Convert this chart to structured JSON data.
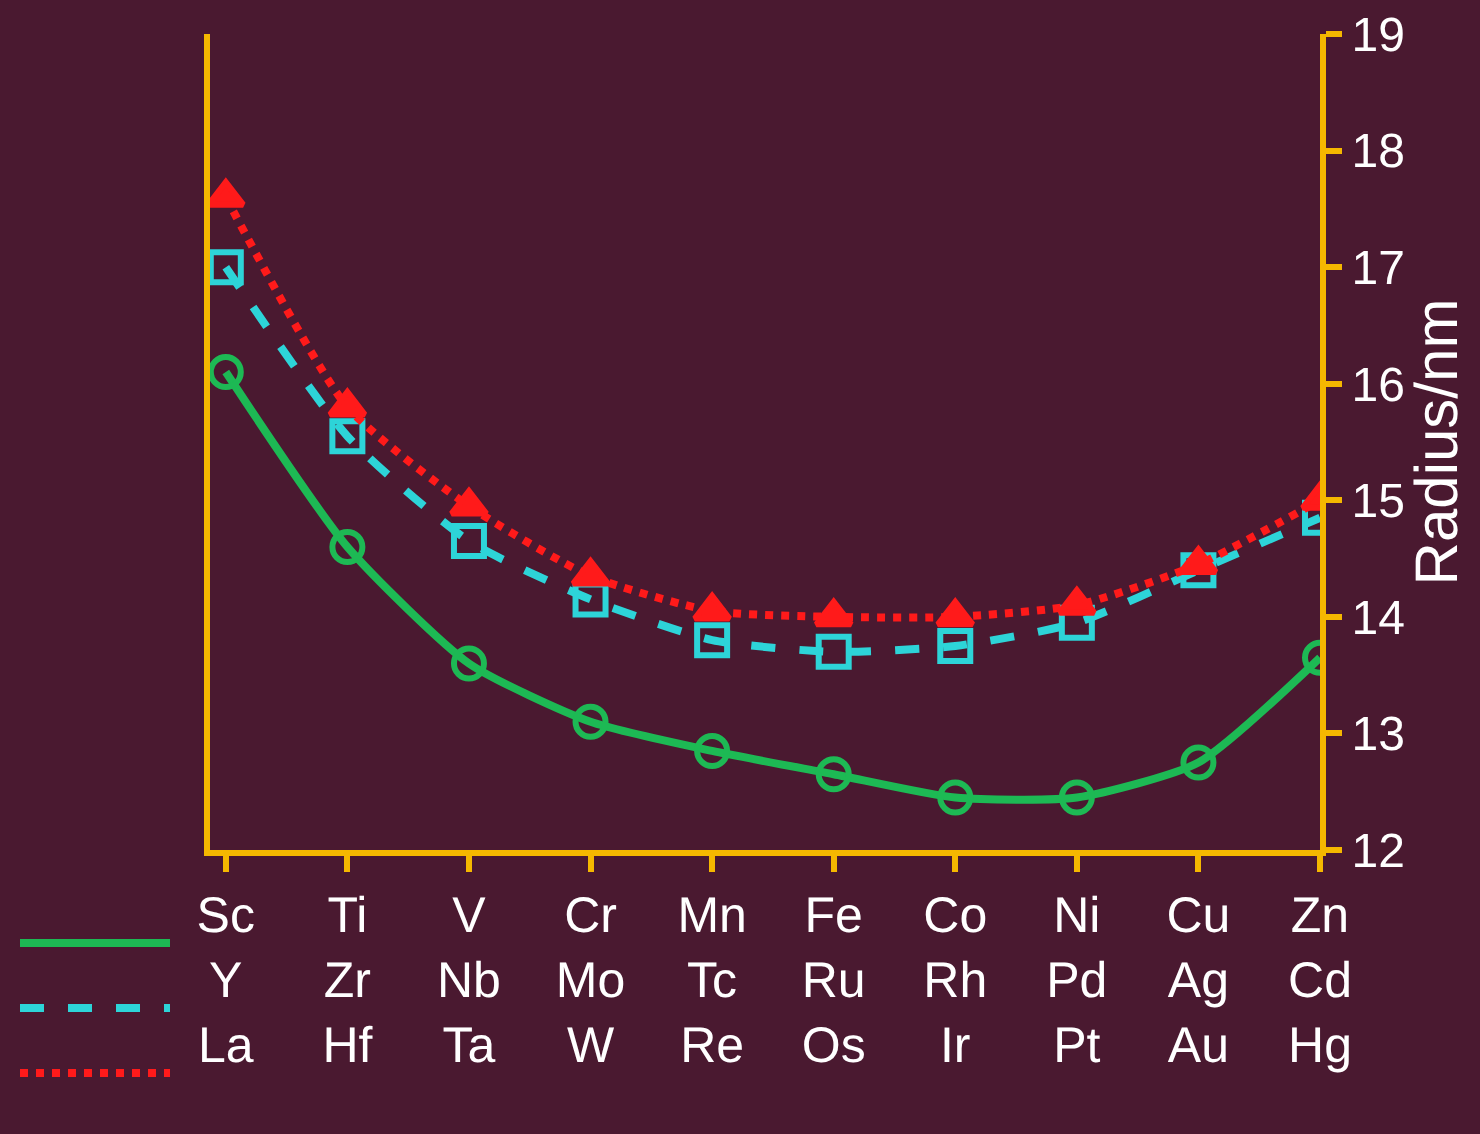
{
  "chart_data": {
    "type": "line",
    "ylabel": "Radius/nm",
    "categories": [
      "Sc\nY\nLa",
      "Ti\nZr\nHf",
      "V\nNb\nTa",
      "Cr\nMo\nW",
      "Mn\nTc\nRe",
      "Fe\nRu\nOs",
      "Co\nRh\nIr",
      "Ni\nPd\nPt",
      "Cu\nAg\nAu",
      "Zn\nCd\nHg"
    ],
    "series": [
      {
        "color": "#1db954",
        "marker": "circle",
        "line_style": "solid",
        "values": [
          16.1,
          14.6,
          13.6,
          13.1,
          12.85,
          12.65,
          12.45,
          12.45,
          12.75,
          13.65
        ]
      },
      {
        "color": "#2dd4d8",
        "marker": "square",
        "line_style": "dashed",
        "values": [
          17.0,
          15.55,
          14.65,
          14.15,
          13.8,
          13.7,
          13.75,
          13.95,
          14.4,
          14.85
        ]
      },
      {
        "color": "#ff1a1a",
        "marker": "triangle",
        "line_style": "dotted",
        "values": [
          17.6,
          15.8,
          14.95,
          14.35,
          14.05,
          14.0,
          14.0,
          14.1,
          14.45,
          15.0
        ]
      }
    ],
    "ylim": [
      12,
      19
    ],
    "yticks": [
      12,
      13,
      14,
      15,
      16,
      17,
      18,
      19
    ]
  }
}
